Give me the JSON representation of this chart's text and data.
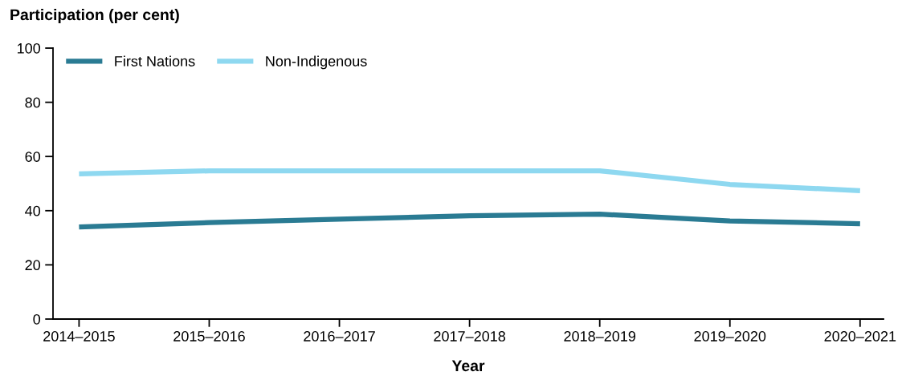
{
  "chart_data": {
    "type": "line",
    "ylabel": "Participation (per cent)",
    "xlabel": "Year",
    "categories": [
      "2014–2015",
      "2015–2016",
      "2016–2017",
      "2017–2018",
      "2018–2019",
      "2019–2020",
      "2020–2021"
    ],
    "series": [
      {
        "name": "First Nations",
        "color": "#2a7b93",
        "values": [
          34.0,
          35.6,
          36.9,
          38.1,
          38.7,
          36.2,
          35.2
        ]
      },
      {
        "name": "Non-Indigenous",
        "color": "#8ed8f0",
        "values": [
          53.6,
          54.7,
          54.7,
          54.7,
          54.7,
          49.7,
          47.4
        ]
      }
    ],
    "ylim": [
      0,
      100
    ],
    "yticks": [
      0,
      20,
      40,
      60,
      80,
      100
    ],
    "grid": false,
    "legend": "top left",
    "marker": "none",
    "line_style": "solid"
  }
}
